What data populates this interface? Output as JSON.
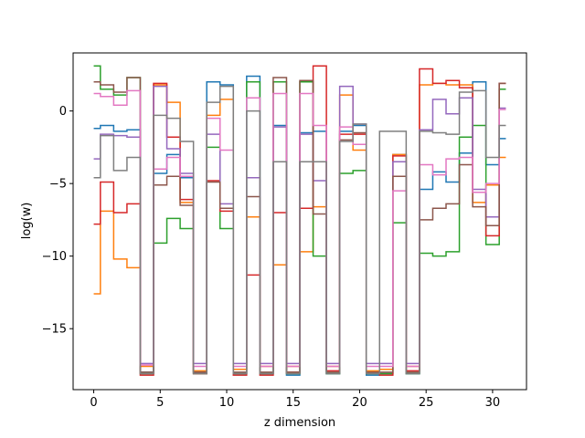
{
  "chart_data": {
    "type": "line",
    "drawstyle": "steps-mid",
    "title": "",
    "xlabel": "z dimension",
    "ylabel": "log(w)",
    "xlim": [
      -1.55,
      32.55
    ],
    "ylim": [
      -19.2,
      4.0
    ],
    "xticks": [
      0,
      5,
      10,
      15,
      20,
      25,
      30
    ],
    "yticks": [
      -15,
      -10,
      -5,
      0
    ],
    "x": [
      0,
      1,
      2,
      3,
      4,
      5,
      6,
      7,
      8,
      9,
      10,
      11,
      12,
      13,
      14,
      15,
      16,
      17,
      18,
      19,
      20,
      21,
      22,
      23,
      24,
      25,
      26,
      27,
      28,
      29,
      30,
      31
    ],
    "grid": false,
    "legend": "none",
    "series": [
      {
        "color": "#1f77b4",
        "values": [
          -1.2,
          -1.0,
          -1.4,
          -1.3,
          -18.0,
          -4.3,
          -3.0,
          -4.6,
          -18.0,
          2.0,
          1.8,
          -18.1,
          2.4,
          -18.1,
          -1.0,
          -18.2,
          -1.5,
          -1.4,
          -18.1,
          -1.4,
          -1.0,
          -18.2,
          -18.1,
          -3.0,
          -18.1,
          -5.4,
          -4.2,
          -4.9,
          -2.9,
          2.0,
          -3.7,
          -1.9
        ]
      },
      {
        "color": "#ff7f0e",
        "values": [
          -12.6,
          -6.9,
          -10.2,
          -10.8,
          -17.6,
          1.8,
          0.6,
          -6.3,
          -17.9,
          -0.3,
          0.8,
          -17.8,
          -7.3,
          -17.6,
          -10.6,
          -17.6,
          -9.7,
          -6.6,
          -17.6,
          1.1,
          -2.7,
          -17.9,
          -17.8,
          -3.0,
          -17.6,
          1.8,
          1.9,
          1.8,
          1.8,
          -6.3,
          -5.1,
          -3.2
        ]
      },
      {
        "color": "#2ca02c",
        "values": [
          3.1,
          1.5,
          1.1,
          2.3,
          -18.1,
          -9.1,
          -7.4,
          -8.1,
          -18.1,
          -2.5,
          -8.1,
          -18.1,
          2.0,
          -18.1,
          2.0,
          -18.1,
          2.0,
          -10.0,
          -18.1,
          -4.3,
          -4.1,
          -18.1,
          -18.1,
          -7.7,
          -18.1,
          -9.8,
          -10.0,
          -9.7,
          -1.8,
          -1.0,
          -9.2,
          1.5
        ]
      },
      {
        "color": "#d62728",
        "values": [
          -7.8,
          -4.9,
          -7.0,
          -6.4,
          -18.2,
          1.9,
          -1.8,
          -6.1,
          -18.1,
          -4.8,
          -6.9,
          -18.2,
          -11.3,
          -18.2,
          -7.0,
          -18.0,
          -6.7,
          3.1,
          -17.9,
          -1.6,
          -1.6,
          -18.0,
          -18.2,
          -3.1,
          -17.9,
          2.9,
          1.9,
          2.1,
          1.6,
          -5.6,
          -8.6,
          1.9
        ]
      },
      {
        "color": "#9467bd",
        "values": [
          -3.3,
          -1.6,
          -1.7,
          -1.8,
          -17.4,
          1.7,
          -2.6,
          -4.3,
          -17.4,
          -1.6,
          -6.4,
          -17.4,
          -4.6,
          -17.4,
          -1.1,
          -17.4,
          -1.6,
          -4.8,
          -17.4,
          1.7,
          -0.9,
          -17.4,
          -17.4,
          -3.5,
          -17.4,
          -1.3,
          0.8,
          -0.2,
          0.9,
          -5.4,
          -7.3,
          0.2
        ]
      },
      {
        "color": "#8c564b",
        "values": [
          2.0,
          1.8,
          1.3,
          2.3,
          -18.0,
          -5.1,
          -4.5,
          -6.5,
          -18.0,
          -4.9,
          -6.7,
          -18.0,
          -5.9,
          -18.0,
          2.3,
          -18.0,
          2.1,
          -7.1,
          -18.0,
          -2.0,
          -1.5,
          -18.0,
          -18.0,
          -4.5,
          -18.0,
          -7.5,
          -6.7,
          -6.4,
          -3.7,
          -6.6,
          -7.9,
          1.9
        ]
      },
      {
        "color": "#e377c2",
        "values": [
          1.2,
          1.0,
          0.4,
          1.4,
          -17.5,
          -4.0,
          -3.2,
          -4.5,
          -17.6,
          -0.5,
          -2.7,
          -17.6,
          0.9,
          -17.6,
          1.2,
          -17.6,
          1.2,
          -1.0,
          -17.6,
          -1.1,
          -2.3,
          -17.6,
          -17.6,
          -5.5,
          -17.6,
          -3.7,
          -4.4,
          -3.3,
          -3.2,
          -5.6,
          -5.0,
          0.1
        ]
      },
      {
        "color": "#7f7f7f",
        "values": [
          -4.6,
          -1.7,
          -4.1,
          -3.2,
          -18.1,
          -0.3,
          -0.5,
          -2.1,
          -18.1,
          0.6,
          1.7,
          -18.1,
          0.0,
          -18.1,
          -3.5,
          -18.1,
          -3.5,
          -3.5,
          -18.1,
          -2.1,
          -0.9,
          -18.1,
          -1.4,
          -1.4,
          -18.1,
          -1.4,
          -1.5,
          -1.6,
          1.3,
          1.4,
          -3.2,
          -1.0
        ]
      }
    ]
  }
}
